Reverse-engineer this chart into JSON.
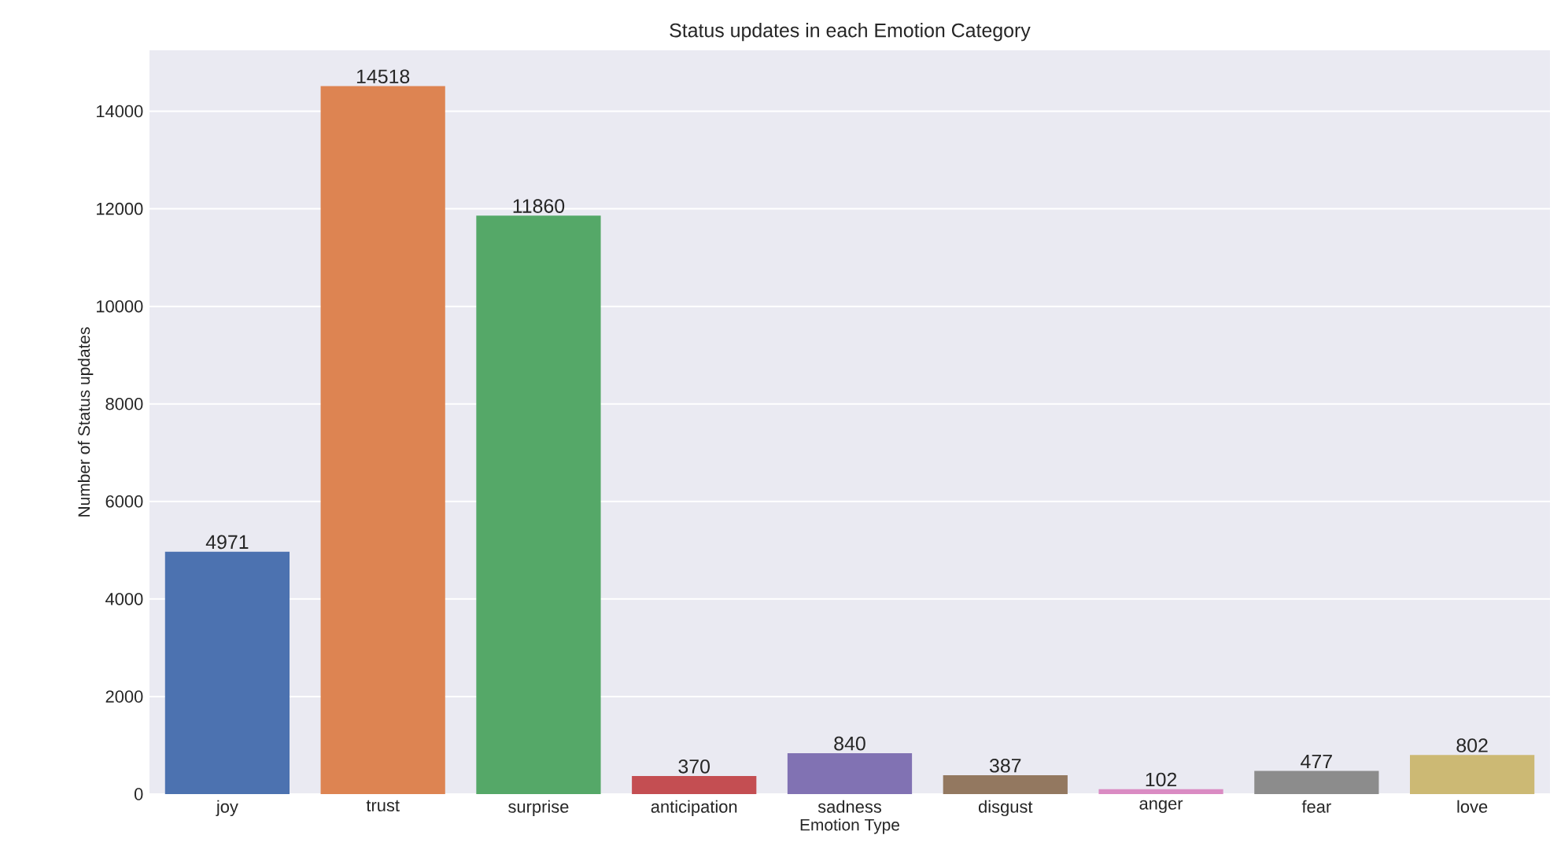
{
  "chart_data": {
    "type": "bar",
    "title": "Status updates in each Emotion Category",
    "xlabel": "Emotion Type",
    "ylabel": "Number of Status updates",
    "categories": [
      "joy",
      "trust",
      "surprise",
      "anticipation",
      "sadness",
      "disgust",
      "anger",
      "fear",
      "love"
    ],
    "values": [
      4971,
      14518,
      11860,
      370,
      840,
      387,
      102,
      477,
      802
    ],
    "colors": [
      "#4c72b0",
      "#dd8452",
      "#55a868",
      "#c44e52",
      "#8172b3",
      "#937860",
      "#da8bc3",
      "#8c8c8c",
      "#ccb974"
    ],
    "ylim": [
      0,
      15250
    ],
    "yticks": [
      0,
      2000,
      4000,
      6000,
      8000,
      10000,
      12000,
      14000
    ],
    "grid": "y",
    "data_labels": true
  }
}
